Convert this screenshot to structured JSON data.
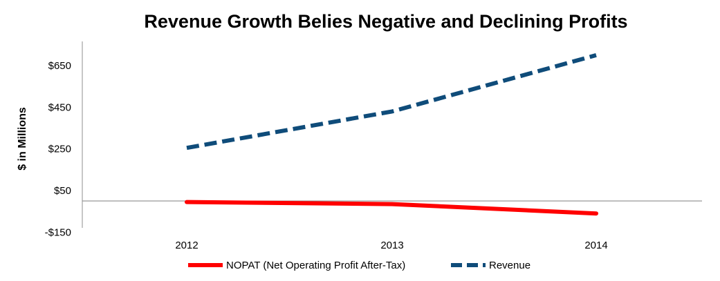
{
  "chart_data": {
    "type": "line",
    "title": "Revenue Growth Belies Negative and Declining Profits",
    "xlabel": "",
    "ylabel": "$ in Millions",
    "categories": [
      "2012",
      "2013",
      "2014"
    ],
    "y_tick_labels": [
      "$650",
      "$450",
      "$250",
      "$50",
      "-$150"
    ],
    "y_ticks": [
      650,
      450,
      250,
      50,
      -150
    ],
    "ylim": [
      -150,
      720
    ],
    "grid": false,
    "legend_position": "bottom",
    "series": [
      {
        "name": "NOPAT (Net Operating Profit After-Tax)",
        "values": [
          -5,
          -15,
          -60
        ],
        "color": "#ff0000",
        "style": "solid"
      },
      {
        "name": "Revenue",
        "values": [
          255,
          430,
          700
        ],
        "color": "#0f4c7a",
        "style": "dashed"
      }
    ]
  }
}
